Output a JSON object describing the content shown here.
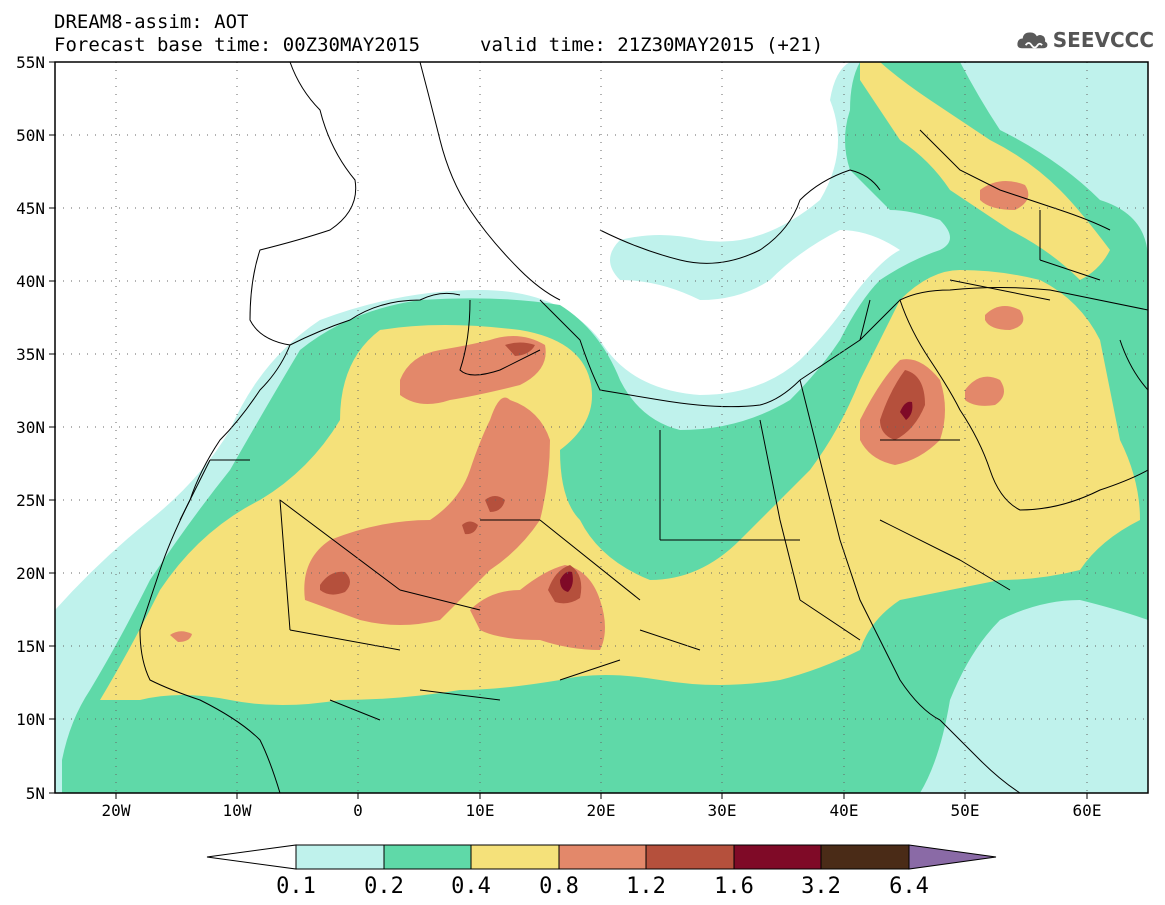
{
  "header": {
    "line1": "DREAM8-assim: AOT",
    "line2": "Forecast base time: 00Z30MAY2015",
    "valid": "valid time: 21Z30MAY2015 (+21)"
  },
  "logo": {
    "text": "SEEVCCC",
    "icon": "cloud-icon"
  },
  "map": {
    "lon_range": [
      -25,
      65
    ],
    "lat_range": [
      5,
      55
    ],
    "lat_labels": [
      "55N",
      "50N",
      "45N",
      "40N",
      "35N",
      "30N",
      "25N",
      "20N",
      "15N",
      "10N",
      "5N"
    ],
    "lon_labels": [
      "20W",
      "10W",
      "0",
      "10E",
      "20E",
      "30E",
      "40E",
      "50E",
      "60E"
    ],
    "grid": "dotted"
  },
  "colorbar": {
    "labels": [
      "0.1",
      "0.2",
      "0.4",
      "0.8",
      "1.2",
      "1.6",
      "3.2",
      "6.4"
    ],
    "colors": [
      "#ffffff",
      "#bff2ec",
      "#5fd9a8",
      "#f5e17a",
      "#e3886a",
      "#b5503c",
      "#7f0a27",
      "#4a2b17",
      "#8a6aa6"
    ]
  }
}
